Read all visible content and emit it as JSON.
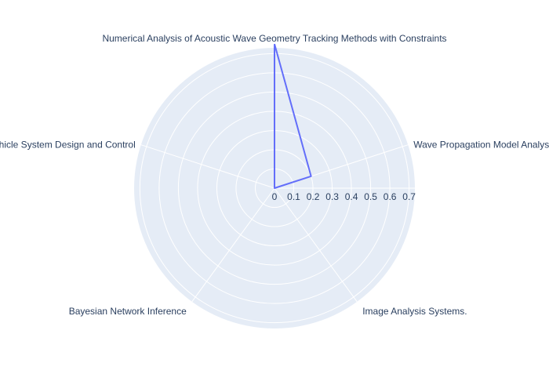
{
  "chart_data": {
    "type": "radar",
    "title": "",
    "categories": [
      "Numerical Analysis of Acoustic Wave Geometry Tracking Methods with Constraints",
      "Wave Propagation Model Analysis",
      "Image Analysis Systems.",
      "Bayesian Network Inference",
      "Vehicle System Design and Control"
    ],
    "series": [
      {
        "values": [
          0.75,
          0.2,
          0.0,
          0.0,
          0.0
        ]
      }
    ],
    "radial_axis": {
      "range": [
        0,
        0.73
      ],
      "ticks": [
        0,
        0.1,
        0.2,
        0.3,
        0.4,
        0.5,
        0.6,
        0.7
      ],
      "tick_labels": [
        "0",
        "0.1",
        "0.2",
        "0.3",
        "0.4",
        "0.5",
        "0.6",
        "0.7"
      ]
    },
    "grid": true,
    "legend": "none"
  },
  "colors": {
    "polar_bg": "#e5ecf6",
    "grid": "#ffffff",
    "series": "#636efa",
    "text": "#2a3f5f"
  }
}
